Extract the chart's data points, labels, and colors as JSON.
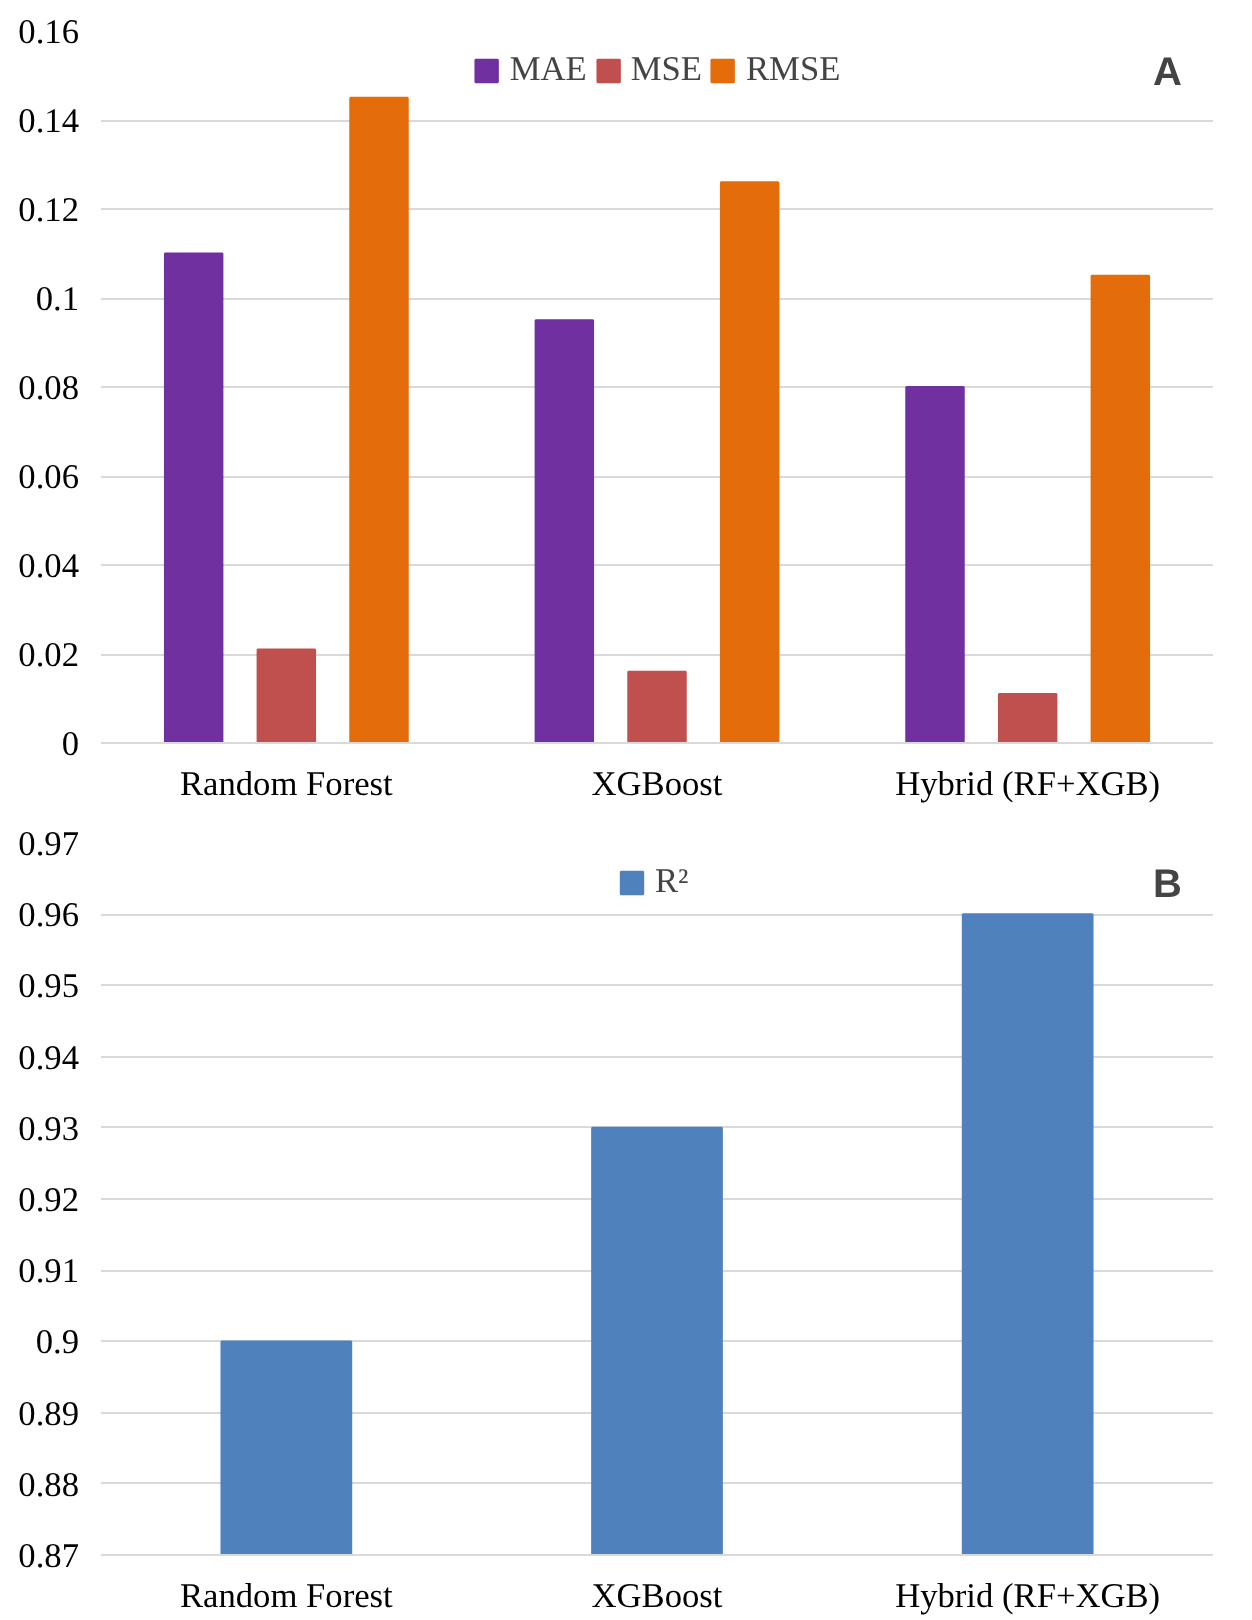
{
  "chart_data": [
    {
      "type": "bar",
      "categories": [
        "Random Forest",
        "XGBoost",
        "Hybrid (RF+XGB)"
      ],
      "series": [
        {
          "name": "MAE",
          "color": "#7030a0",
          "values": [
            0.11,
            0.095,
            0.08
          ]
        },
        {
          "name": "MSE",
          "color": "#c0504d",
          "values": [
            0.021,
            0.016,
            0.011
          ]
        },
        {
          "name": "RMSE",
          "color": "#e46c0a",
          "values": [
            0.145,
            0.126,
            0.105
          ]
        }
      ],
      "ylim": [
        0,
        0.16
      ],
      "yticks": [
        0,
        0.02,
        0.04,
        0.06,
        0.08,
        0.1,
        0.12,
        0.14,
        0.16
      ],
      "grid": "y",
      "legend": "top",
      "annotations": [
        "A"
      ]
    },
    {
      "type": "bar",
      "categories": [
        "Random Forest",
        "XGBoost",
        "Hybrid (RF+XGB)"
      ],
      "series": [
        {
          "name": "R²",
          "color": "#4f81bd",
          "values": [
            0.9,
            0.93,
            0.96
          ]
        }
      ],
      "ylim": [
        0.87,
        0.97
      ],
      "yticks": [
        0.87,
        0.88,
        0.89,
        0.9,
        0.91,
        0.92,
        0.93,
        0.94,
        0.95,
        0.96,
        0.97
      ],
      "grid": "y",
      "legend": "top",
      "annotations": [
        "B"
      ]
    }
  ]
}
